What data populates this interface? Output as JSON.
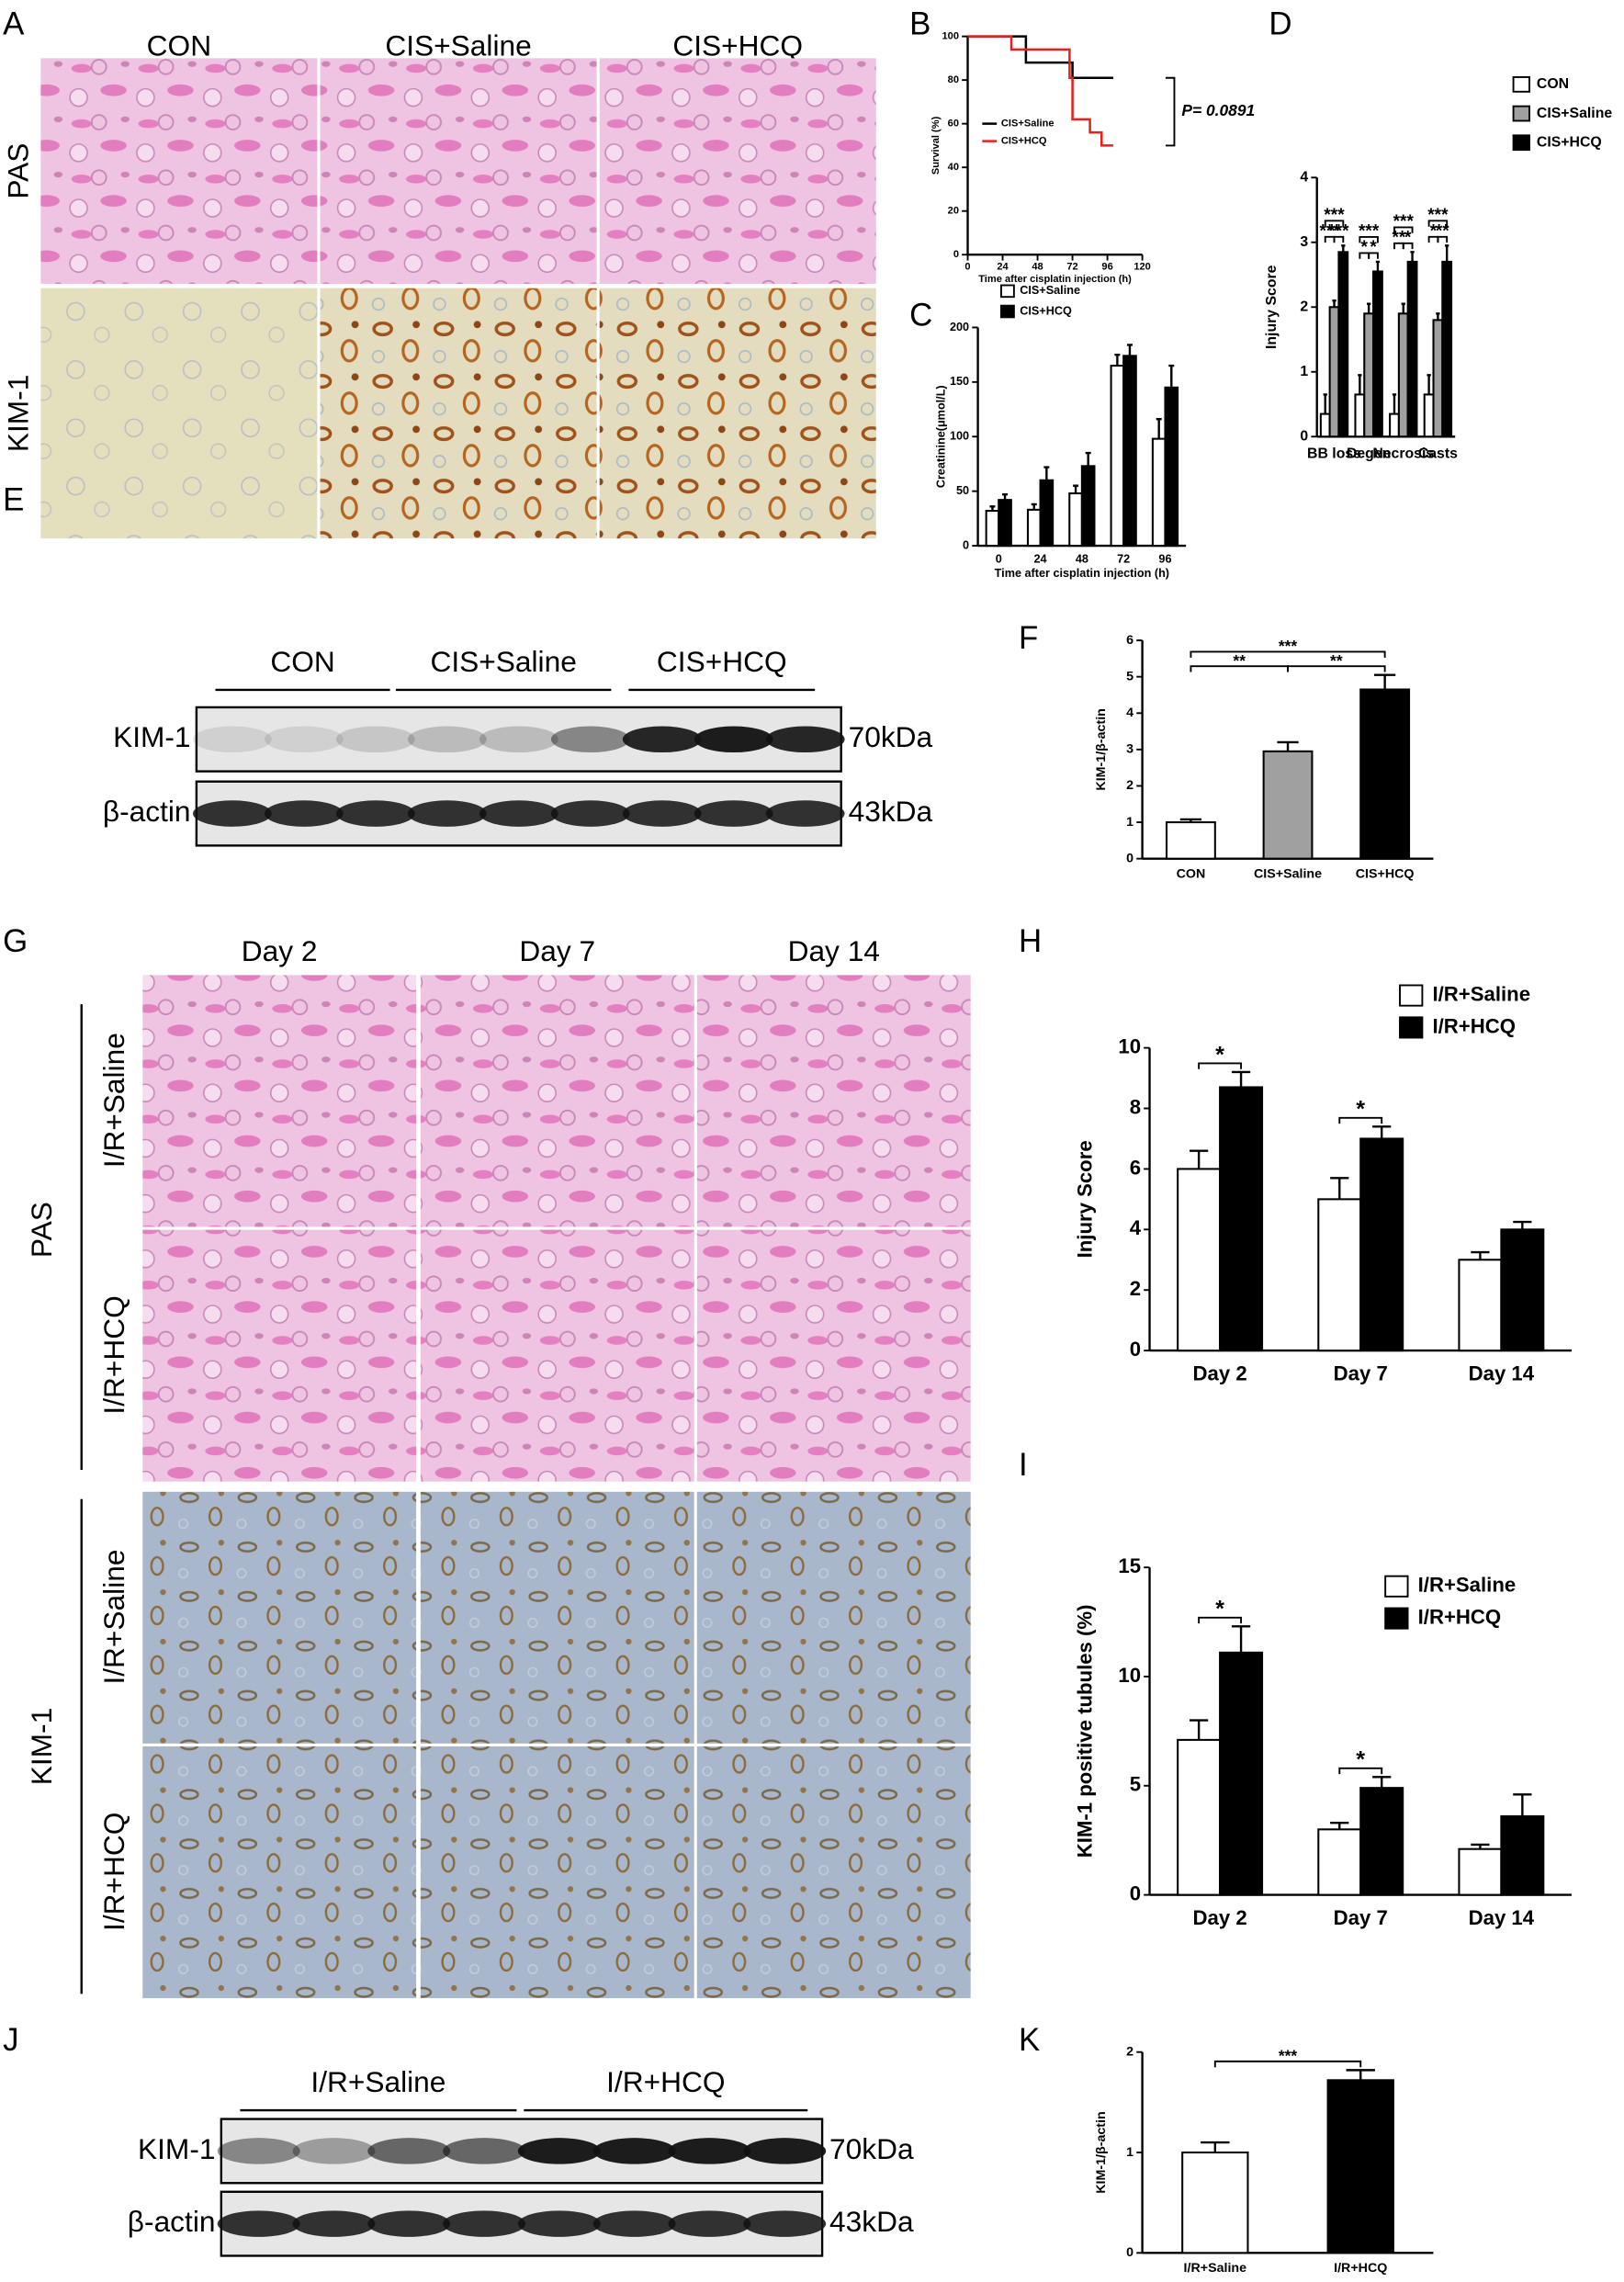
{
  "panel_labels": [
    "A",
    "B",
    "C",
    "D",
    "E",
    "F",
    "G",
    "H",
    "I",
    "J",
    "K"
  ],
  "panel_a": {
    "columns": [
      "CON",
      "CIS+Saline",
      "CIS+HCQ"
    ],
    "rows": [
      "PAS",
      "KIM-1"
    ]
  },
  "panel_e": {
    "groups": [
      "CON",
      "CIS+Saline",
      "CIS+HCQ"
    ],
    "bands": [
      "KIM-1",
      "β-actin"
    ],
    "sizes": [
      "70kDa",
      "43kDa"
    ]
  },
  "panel_g": {
    "columns": [
      "Day 2",
      "Day 7",
      "Day 14"
    ],
    "stains": [
      "PAS",
      "KIM-1"
    ],
    "rows": [
      "I/R+Saline",
      "I/R+HCQ"
    ]
  },
  "panel_j": {
    "groups": [
      "I/R+Saline",
      "I/R+HCQ"
    ],
    "bands": [
      "KIM-1",
      "β-actin"
    ],
    "sizes": [
      "70kDa",
      "43kDa"
    ]
  },
  "chart_data": [
    {
      "type": "line",
      "y_label": "Survival (%)",
      "x_label": "Time after cisplatin injection (h)",
      "x": [
        0,
        30,
        30,
        40,
        40,
        70,
        70,
        72,
        72,
        84,
        84,
        92,
        92,
        100
      ],
      "series": [
        {
          "name": "CIS+Saline",
          "color": "#000000",
          "values": [
            100,
            100,
            100,
            100,
            88,
            88,
            88,
            88,
            81,
            81,
            81,
            81,
            81,
            81
          ]
        },
        {
          "name": "CIS+HCQ",
          "color": "#e8211c",
          "values": [
            100,
            100,
            94,
            94,
            94,
            94,
            81,
            81,
            62,
            62,
            56,
            56,
            50,
            50
          ]
        }
      ],
      "xlim": [
        0,
        120
      ],
      "xticks": [
        0,
        24,
        48,
        72,
        96,
        120
      ],
      "ylim": [
        0,
        100
      ],
      "yticks": [
        0,
        20,
        40,
        60,
        80,
        100
      ],
      "annotation": "P= 0.0891"
    },
    {
      "type": "bar",
      "y_label": "Creatinine(μmol/L)",
      "x_label": "Time after cisplatin injection (h)",
      "categories": [
        "0",
        "24",
        "48",
        "72",
        "96"
      ],
      "series": [
        {
          "name": "CIS+Saline",
          "color": "#ffffff",
          "values": [
            32,
            33,
            48,
            165,
            98
          ],
          "errors": [
            4,
            5,
            7,
            10,
            18
          ]
        },
        {
          "name": "CIS+HCQ",
          "color": "#000000",
          "values": [
            42,
            60,
            73,
            174,
            145
          ],
          "errors": [
            5,
            12,
            12,
            10,
            20
          ]
        }
      ],
      "ylim": [
        0,
        200
      ],
      "yticks": [
        0,
        50,
        100,
        150,
        200
      ]
    },
    {
      "type": "bar",
      "y_label": "Injury Score",
      "categories": [
        "BB loss",
        "Degen",
        "Necrosis",
        "Casts"
      ],
      "series": [
        {
          "name": "CON",
          "color": "#ffffff",
          "values": [
            0.35,
            0.65,
            0.35,
            0.65
          ],
          "errors": [
            0.3,
            0.3,
            0.3,
            0.3
          ]
        },
        {
          "name": "CIS+Saline",
          "color": "#a0a0a0",
          "values": [
            2.0,
            1.9,
            1.9,
            1.8
          ],
          "errors": [
            0.1,
            0.15,
            0.15,
            0.1
          ]
        },
        {
          "name": "CIS+HCQ",
          "color": "#000000",
          "values": [
            2.85,
            2.55,
            2.7,
            2.7
          ],
          "errors": [
            0.1,
            0.15,
            0.15,
            0.25
          ]
        }
      ],
      "ylim": [
        0,
        4
      ],
      "yticks": [
        0,
        1,
        2,
        3,
        4
      ],
      "significance": [
        [
          "***",
          "***",
          "***"
        ],
        [
          "***",
          "*",
          "*"
        ],
        [
          "***",
          "**",
          "*"
        ],
        [
          "***",
          "*",
          "**"
        ]
      ]
    },
    {
      "type": "bar",
      "y_label": "KIM-1/β-actin",
      "categories": [
        "CON",
        "CIS+Saline",
        "CIS+HCQ"
      ],
      "values": [
        1.0,
        2.95,
        4.65
      ],
      "errors": [
        0.08,
        0.25,
        0.4
      ],
      "colors": [
        "#ffffff",
        "#a0a0a0",
        "#000000"
      ],
      "ylim": [
        0,
        6
      ],
      "yticks": [
        0,
        1,
        2,
        3,
        4,
        5,
        6
      ],
      "significance": [
        "**",
        "**",
        "***"
      ]
    },
    {
      "type": "bar",
      "y_label": "Injury Score",
      "categories": [
        "Day 2",
        "Day 7",
        "Day 14"
      ],
      "series": [
        {
          "name": "I/R+Saline",
          "color": "#ffffff",
          "values": [
            6.0,
            5.0,
            3.0
          ],
          "errors": [
            0.6,
            0.7,
            0.25
          ]
        },
        {
          "name": "I/R+HCQ",
          "color": "#000000",
          "values": [
            8.7,
            7.0,
            4.0
          ],
          "errors": [
            0.5,
            0.4,
            0.25
          ]
        }
      ],
      "ylim": [
        0,
        10
      ],
      "yticks": [
        0,
        2,
        4,
        6,
        8,
        10
      ],
      "significance": [
        "*",
        "*"
      ]
    },
    {
      "type": "bar",
      "y_label": "KIM-1 positive tubules (%)",
      "categories": [
        "Day 2",
        "Day 7",
        "Day 14"
      ],
      "series": [
        {
          "name": "I/R+Saline",
          "color": "#ffffff",
          "values": [
            7.1,
            3.0,
            2.1
          ],
          "errors": [
            0.9,
            0.3,
            0.2
          ]
        },
        {
          "name": "I/R+HCQ",
          "color": "#000000",
          "values": [
            11.1,
            4.9,
            3.6
          ],
          "errors": [
            1.2,
            0.5,
            1.0
          ]
        }
      ],
      "ylim": [
        0,
        15
      ],
      "yticks": [
        0,
        5,
        10,
        15
      ],
      "significance": [
        "*",
        "*"
      ]
    },
    {
      "type": "bar",
      "y_label": "KIM-1/β-actin",
      "categories": [
        "I/R+Saline",
        "I/R+HCQ"
      ],
      "values": [
        1.0,
        1.72
      ],
      "errors": [
        0.1,
        0.1
      ],
      "colors": [
        "#ffffff",
        "#000000"
      ],
      "ylim": [
        0,
        2
      ],
      "yticks": [
        0,
        1,
        2
      ],
      "significance": [
        "***"
      ]
    }
  ]
}
